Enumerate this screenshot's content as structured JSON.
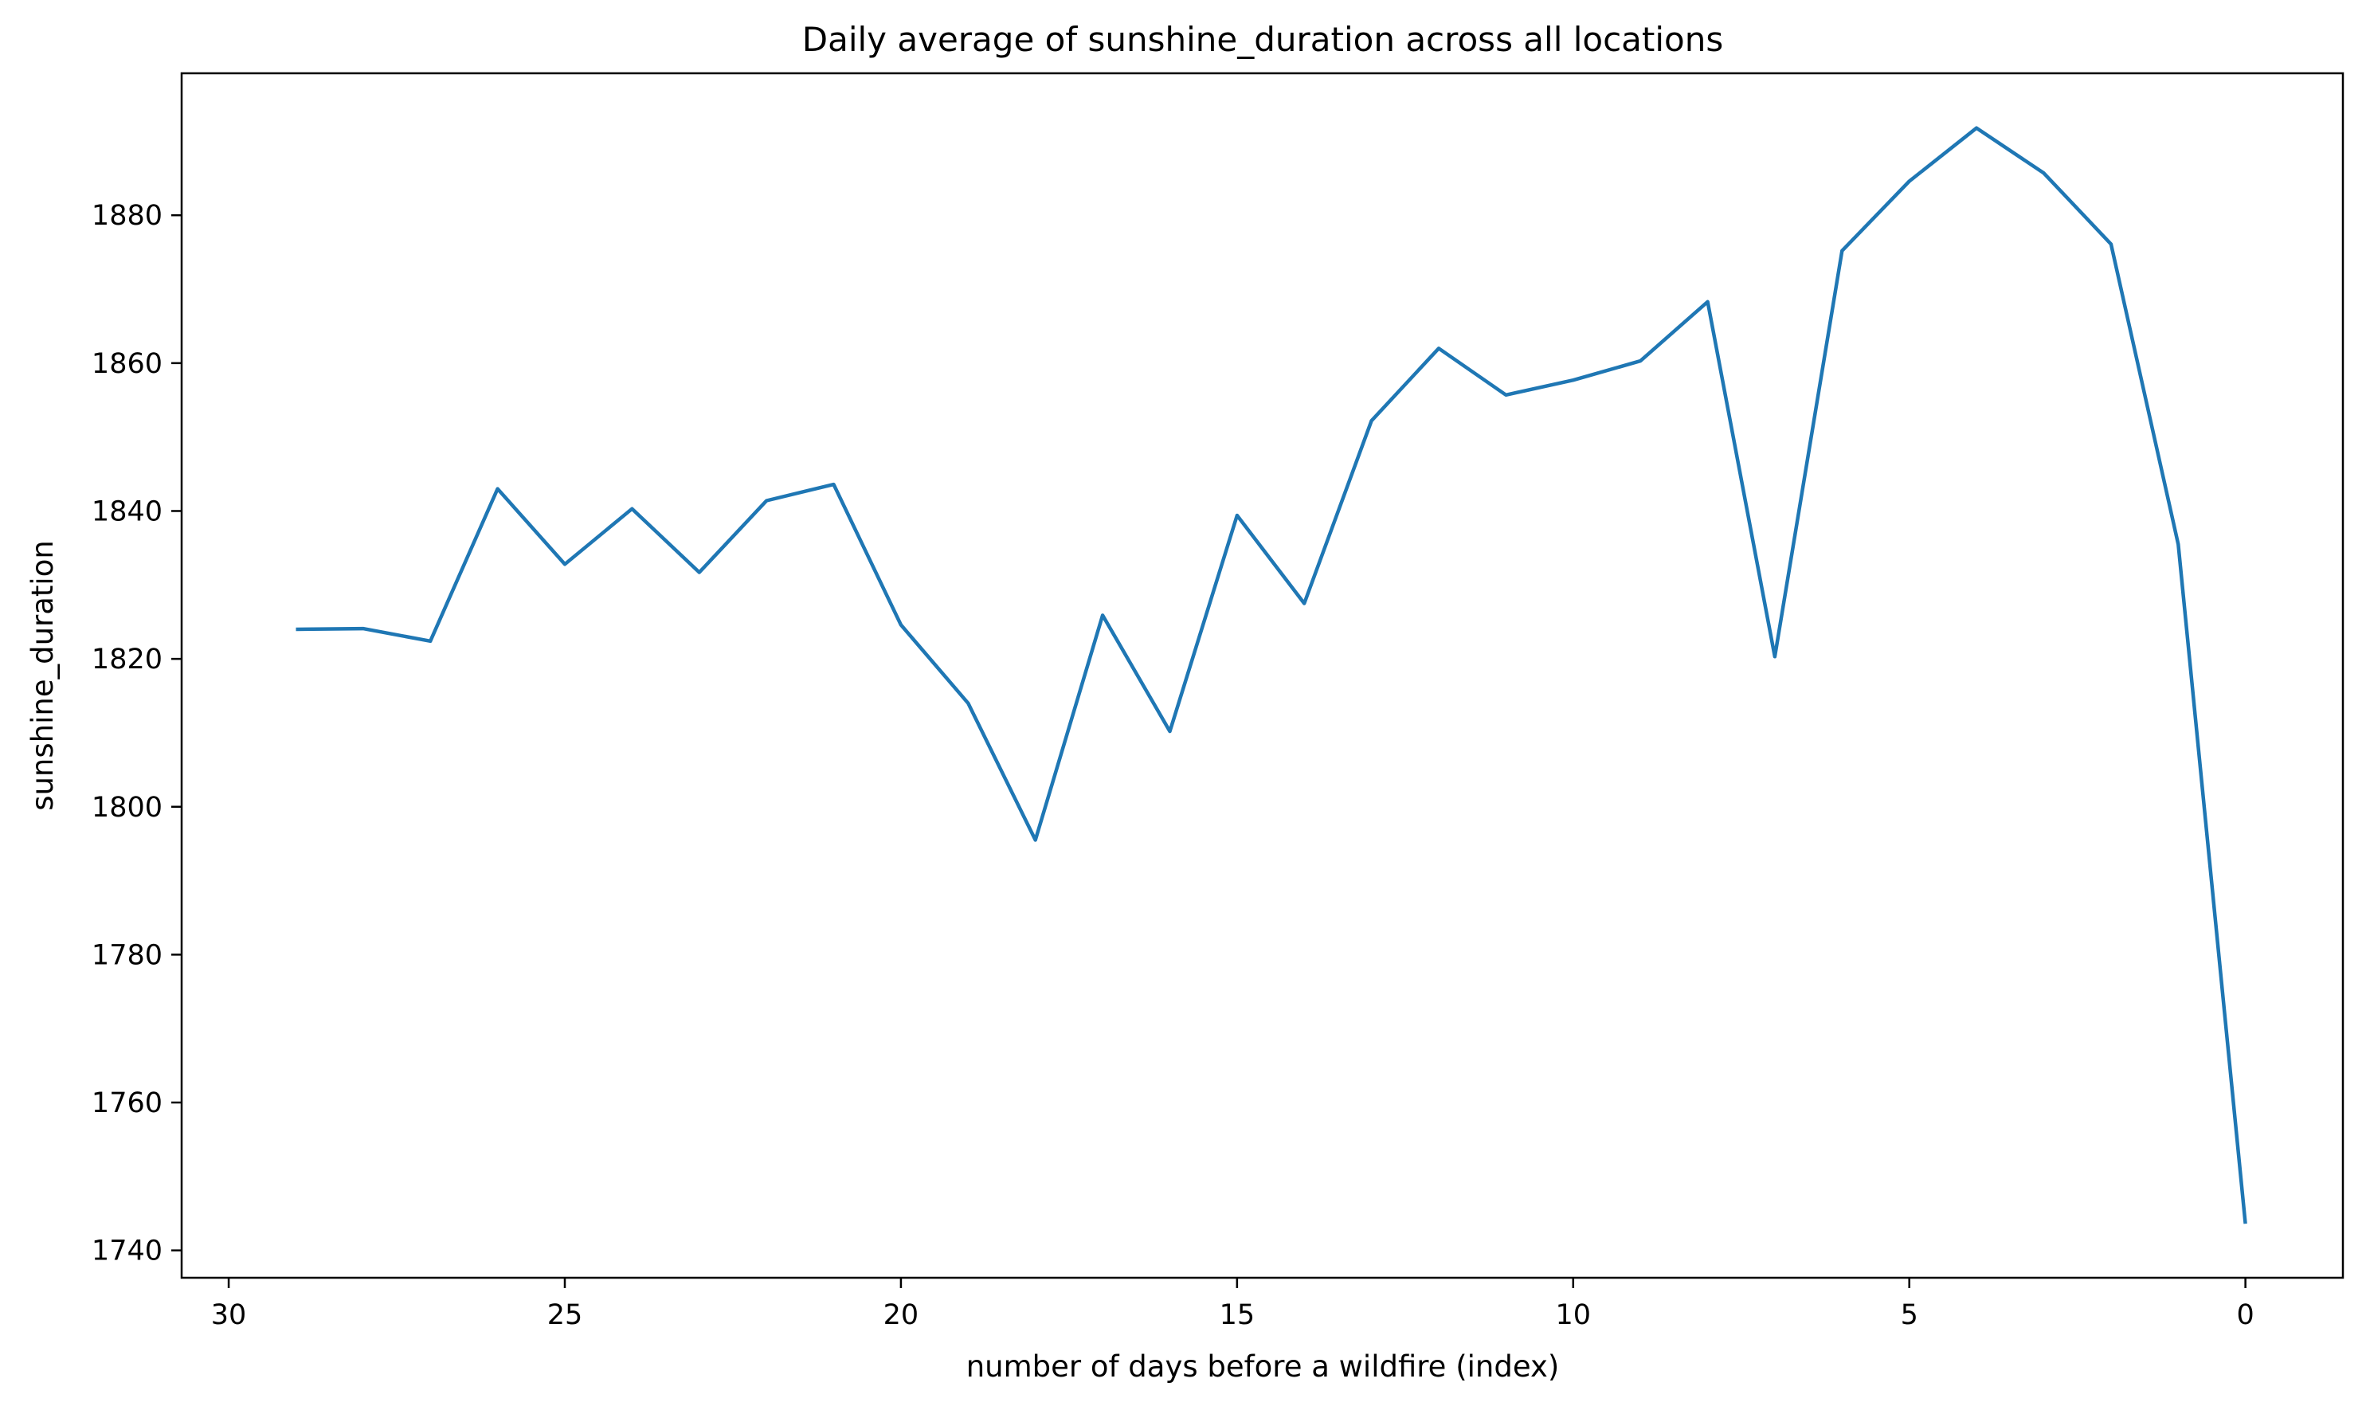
{
  "chart_data": {
    "type": "line",
    "title": "Daily average of sunshine_duration across all locations",
    "xlabel": "number of days before a wildfire (index)",
    "ylabel": "sunshine_duration",
    "xlim": [
      30.7,
      -1.45
    ],
    "ylim": [
      1736.3,
      1899.2
    ],
    "x_ticks": [
      30,
      25,
      20,
      15,
      10,
      5,
      0
    ],
    "x_tick_labels": [
      "30",
      "25",
      "20",
      "15",
      "10",
      "5",
      "0"
    ],
    "y_ticks": [
      1740,
      1760,
      1780,
      1800,
      1820,
      1840,
      1860,
      1880
    ],
    "y_tick_labels": [
      "1740",
      "1760",
      "1780",
      "1800",
      "1820",
      "1840",
      "1860",
      "1880"
    ],
    "grid": false,
    "colors": {
      "series": "#1f77b4",
      "axes": "#000000",
      "background": "#ffffff"
    },
    "series": [
      {
        "x": [
          29,
          28,
          27,
          26,
          25,
          24,
          23,
          22,
          21,
          20,
          19,
          18,
          17,
          16,
          15,
          14,
          13,
          12,
          11,
          10,
          9,
          8,
          7,
          6,
          5,
          4,
          3,
          2,
          1,
          0
        ],
        "values": [
          1824.0,
          1824.1,
          1822.4,
          1843.0,
          1832.8,
          1840.3,
          1831.7,
          1841.4,
          1843.6,
          1824.6,
          1814.0,
          1795.5,
          1825.9,
          1810.2,
          1839.4,
          1827.5,
          1852.2,
          1862.0,
          1855.7,
          1857.7,
          1860.3,
          1868.3,
          1820.3,
          1875.2,
          1884.6,
          1891.8,
          1885.7,
          1876.1,
          1835.5,
          1743.6
        ]
      }
    ]
  }
}
